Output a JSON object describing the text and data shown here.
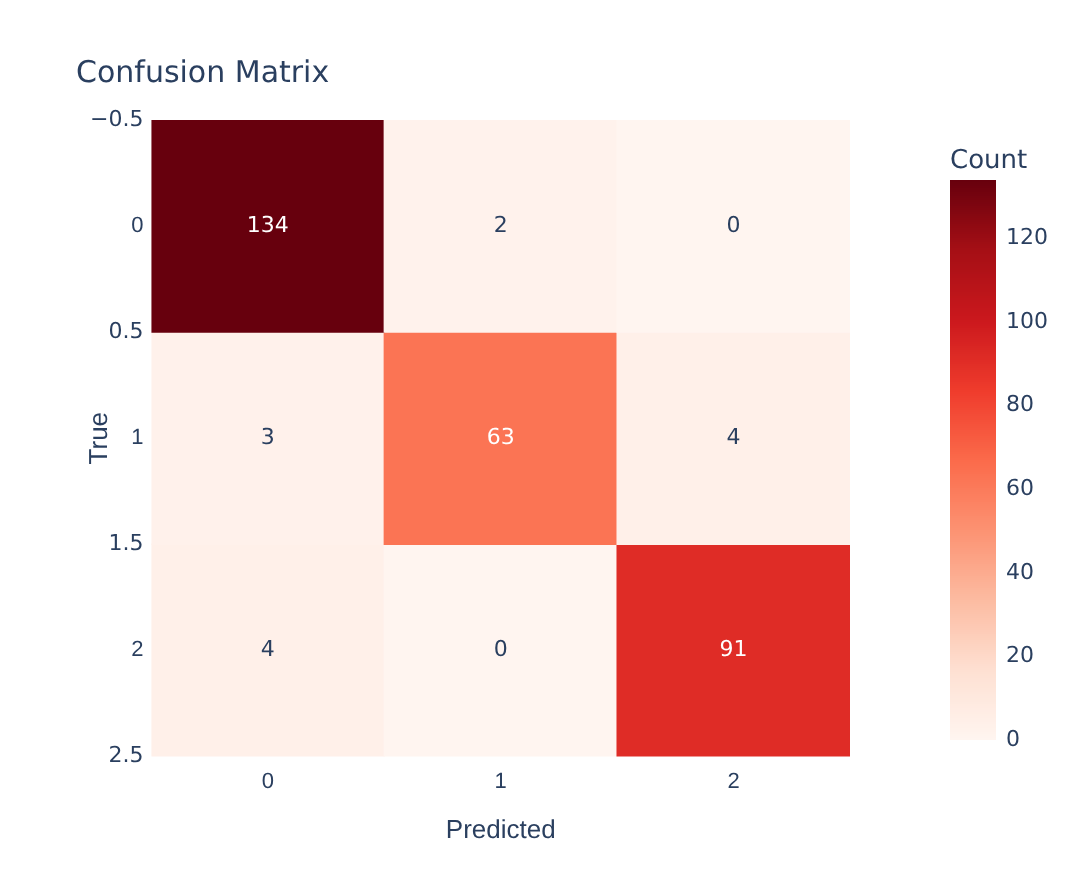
{
  "chart_data": {
    "type": "heatmap",
    "title": "Confusion Matrix",
    "xlabel": "Predicted",
    "ylabel": "True",
    "clabel": "Count",
    "categories": [
      "0",
      "1",
      "2"
    ],
    "y_categories": [
      "0",
      "1",
      "2"
    ],
    "annotations": [
      "−0.5",
      "0.5",
      "1.5",
      "2.5"
    ],
    "cells": [
      [
        134,
        2,
        0
      ],
      [
        3,
        63,
        4
      ],
      [
        4,
        0,
        91
      ]
    ],
    "clim": [
      0,
      134
    ],
    "cticks": [
      0,
      20,
      40,
      60,
      80,
      100,
      120
    ],
    "data_labels": true,
    "grid": false
  }
}
